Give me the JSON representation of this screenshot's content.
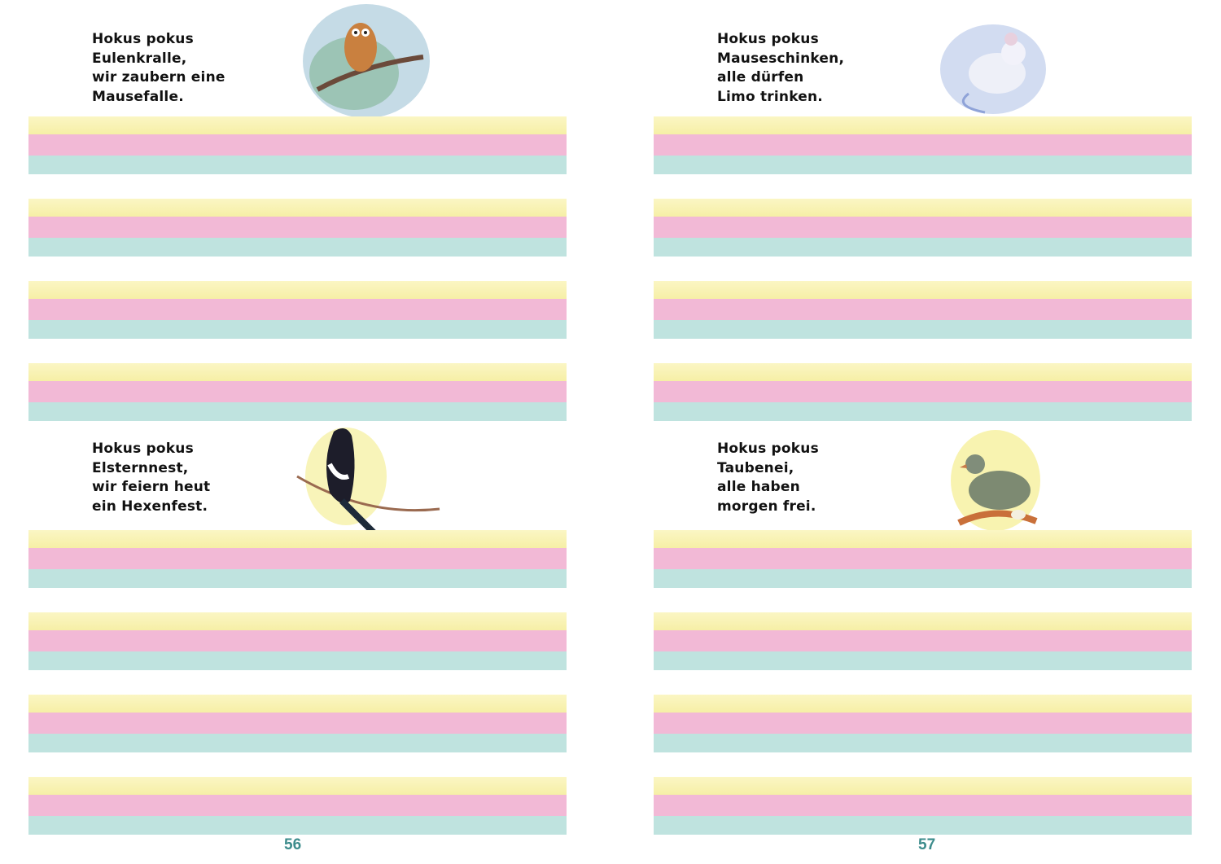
{
  "colors": {
    "line_yellow": "#f6efa6",
    "line_pink": "#f2b9d6",
    "line_teal": "#bfe3df",
    "page_number": "#3d8c8c"
  },
  "pages": [
    {
      "page_number": "56",
      "poems": [
        {
          "lines": [
            "Hokus pokus",
            "Eulenkralle,",
            "wir zaubern eine",
            "Mausefalle."
          ],
          "illustration": "owl-icon"
        },
        {
          "lines": [
            "Hokus pokus",
            "Elsternnest,",
            "wir feiern heut",
            "ein Hexenfest."
          ],
          "illustration": "magpie-icon"
        }
      ]
    },
    {
      "page_number": "57",
      "poems": [
        {
          "lines": [
            "Hokus pokus",
            "Mauseschinken,",
            "alle dürfen",
            "Limo trinken."
          ],
          "illustration": "mouse-icon"
        },
        {
          "lines": [
            "Hokus pokus",
            "Taubenei,",
            "alle haben",
            "morgen frei."
          ],
          "illustration": "dove-icon"
        }
      ]
    }
  ]
}
